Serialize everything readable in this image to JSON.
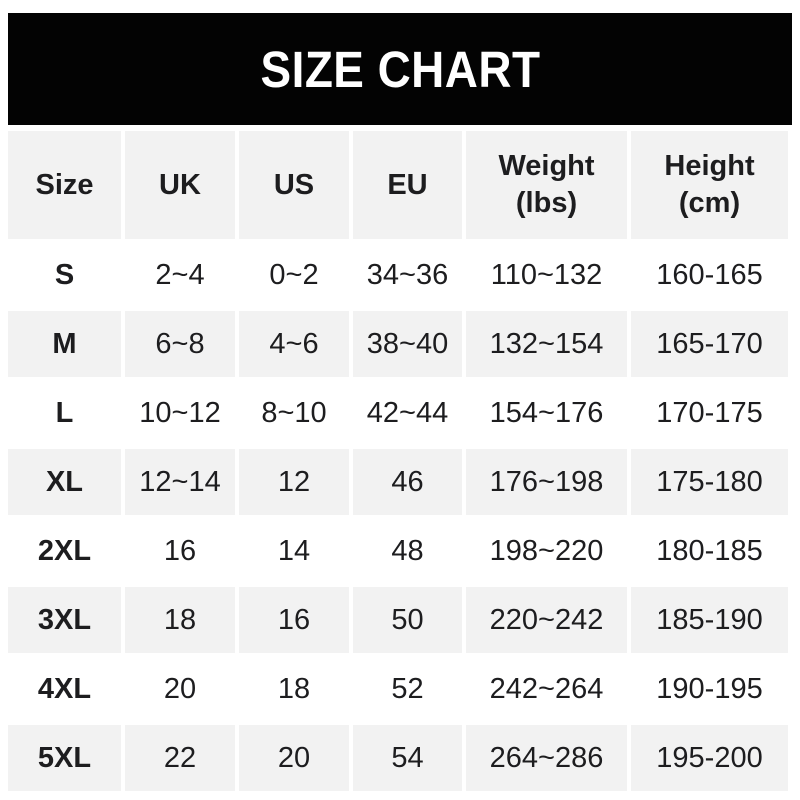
{
  "banner": {
    "title": "SIZE CHART"
  },
  "colors": {
    "banner_bg": "#030303",
    "banner_text": "#ffffff",
    "row_shaded_bg": "#f2f2f2",
    "row_plain_bg": "#ffffff",
    "text": "#1d1d1f"
  },
  "chart_data": {
    "type": "table",
    "title": "SIZE CHART",
    "columns": [
      {
        "label": "Size",
        "sub": ""
      },
      {
        "label": "UK",
        "sub": ""
      },
      {
        "label": "US",
        "sub": ""
      },
      {
        "label": "EU",
        "sub": ""
      },
      {
        "label": "Weight",
        "sub": "(lbs)"
      },
      {
        "label": "Height",
        "sub": "(cm)"
      }
    ],
    "rows": [
      {
        "size": "S",
        "uk": "2~4",
        "us": "0~2",
        "eu": "34~36",
        "weight": "110~132",
        "height": "160-165"
      },
      {
        "size": "M",
        "uk": "6~8",
        "us": "4~6",
        "eu": "38~40",
        "weight": "132~154",
        "height": "165-170"
      },
      {
        "size": "L",
        "uk": "10~12",
        "us": "8~10",
        "eu": "42~44",
        "weight": "154~176",
        "height": "170-175"
      },
      {
        "size": "XL",
        "uk": "12~14",
        "us": "12",
        "eu": "46",
        "weight": "176~198",
        "height": "175-180"
      },
      {
        "size": "2XL",
        "uk": "16",
        "us": "14",
        "eu": "48",
        "weight": "198~220",
        "height": "180-185"
      },
      {
        "size": "3XL",
        "uk": "18",
        "us": "16",
        "eu": "50",
        "weight": "220~242",
        "height": "185-190"
      },
      {
        "size": "4XL",
        "uk": "20",
        "us": "18",
        "eu": "52",
        "weight": "242~264",
        "height": "190-195"
      },
      {
        "size": "5XL",
        "uk": "22",
        "us": "20",
        "eu": "54",
        "weight": "264~286",
        "height": "195-200"
      }
    ]
  }
}
